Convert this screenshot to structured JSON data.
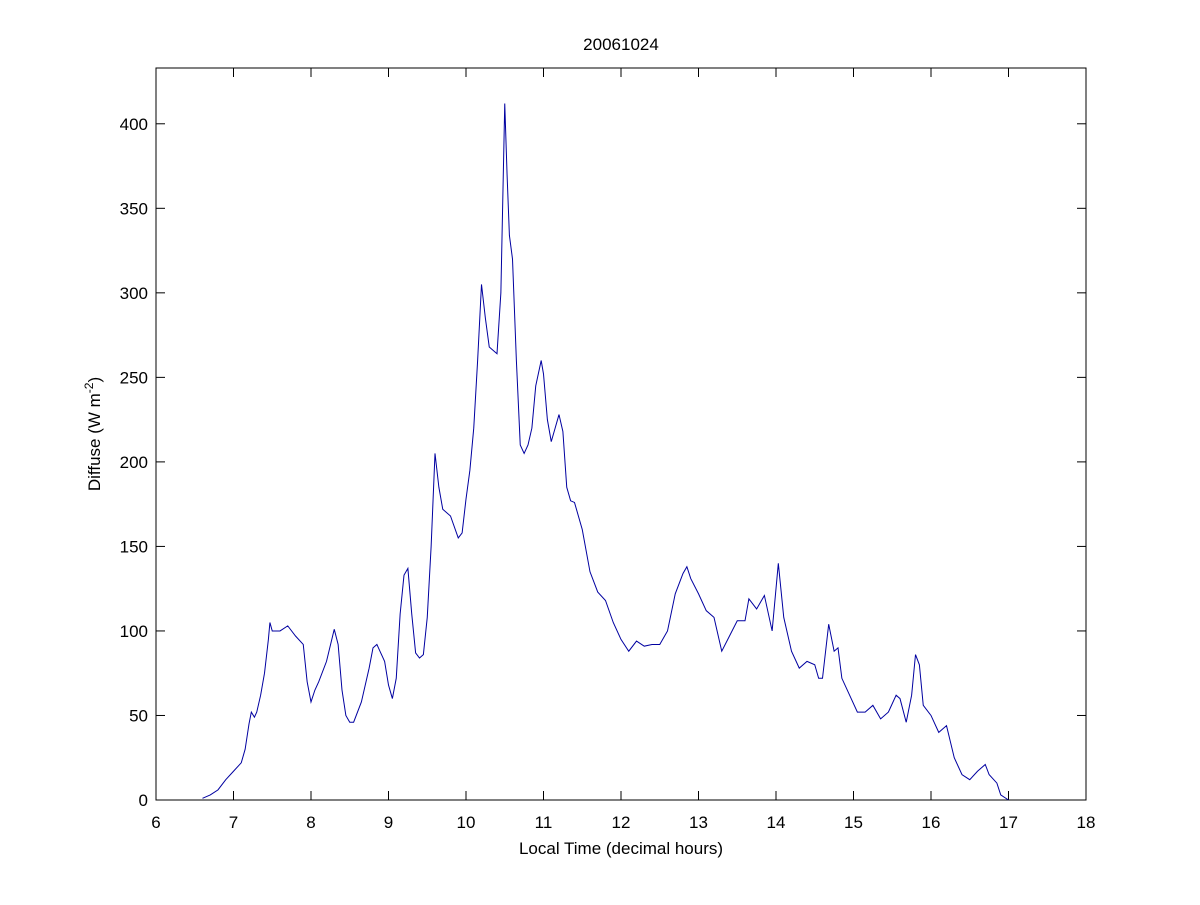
{
  "chart_data": {
    "type": "line",
    "title": "20061024",
    "xlabel": "Local Time (decimal hours)",
    "ylabel": [
      "Diffuse (W m",
      "-2",
      ")"
    ],
    "xlim": [
      6,
      18
    ],
    "xticks": [
      6,
      7,
      8,
      9,
      10,
      11,
      12,
      13,
      14,
      15,
      16,
      17,
      18
    ],
    "ylim": [
      0,
      433
    ],
    "yticks": [
      0,
      50,
      100,
      150,
      200,
      250,
      300,
      350,
      400
    ],
    "x": [
      6.6,
      6.7,
      6.8,
      6.9,
      7.0,
      7.1,
      7.15,
      7.2,
      7.23,
      7.27,
      7.3,
      7.35,
      7.4,
      7.45,
      7.47,
      7.5,
      7.6,
      7.7,
      7.8,
      7.9,
      7.95,
      8.0,
      8.05,
      8.1,
      8.2,
      8.3,
      8.35,
      8.4,
      8.45,
      8.5,
      8.55,
      8.65,
      8.75,
      8.8,
      8.85,
      8.95,
      9.0,
      9.05,
      9.1,
      9.15,
      9.2,
      9.25,
      9.3,
      9.35,
      9.4,
      9.45,
      9.5,
      9.55,
      9.6,
      9.65,
      9.7,
      9.8,
      9.9,
      9.95,
      10.0,
      10.05,
      10.1,
      10.15,
      10.2,
      10.25,
      10.3,
      10.4,
      10.45,
      10.5,
      10.53,
      10.56,
      10.6,
      10.65,
      10.7,
      10.75,
      10.8,
      10.85,
      10.9,
      10.97,
      11.0,
      11.05,
      11.1,
      11.15,
      11.2,
      11.25,
      11.3,
      11.35,
      11.4,
      11.5,
      11.6,
      11.7,
      11.8,
      11.9,
      12.0,
      12.1,
      12.2,
      12.3,
      12.4,
      12.5,
      12.6,
      12.7,
      12.8,
      12.85,
      12.9,
      13.0,
      13.1,
      13.2,
      13.3,
      13.4,
      13.5,
      13.6,
      13.65,
      13.75,
      13.85,
      13.95,
      14.0,
      14.03,
      14.1,
      14.2,
      14.3,
      14.4,
      14.5,
      14.55,
      14.6,
      14.68,
      14.75,
      14.8,
      14.85,
      14.95,
      15.05,
      15.15,
      15.25,
      15.35,
      15.45,
      15.55,
      15.6,
      15.68,
      15.75,
      15.8,
      15.85,
      15.9,
      16.0,
      16.1,
      16.2,
      16.3,
      16.4,
      16.5,
      16.6,
      16.7,
      16.75,
      16.85,
      16.9,
      17.0
    ],
    "series": [
      {
        "color": "#0000a0",
        "values": [
          1,
          3,
          6,
          12,
          17,
          22,
          30,
          45,
          52,
          49,
          52,
          62,
          75,
          95,
          105,
          100,
          100,
          103,
          97,
          92,
          70,
          58,
          65,
          70,
          82,
          101,
          92,
          65,
          50,
          46,
          46,
          58,
          78,
          90,
          92,
          82,
          68,
          60,
          72,
          110,
          133,
          137,
          110,
          87,
          84,
          86,
          108,
          150,
          205,
          185,
          172,
          168,
          155,
          158,
          178,
          195,
          220,
          260,
          305,
          285,
          268,
          264,
          300,
          412,
          370,
          334,
          320,
          260,
          210,
          205,
          210,
          220,
          245,
          260,
          252,
          225,
          212,
          220,
          228,
          218,
          185,
          177,
          176,
          160,
          135,
          123,
          118,
          105,
          95,
          88,
          94,
          91,
          92,
          92,
          100,
          122,
          134,
          138,
          131,
          122,
          112,
          108,
          88,
          97,
          106,
          106,
          119,
          113,
          121,
          100,
          125,
          140,
          108,
          88,
          78,
          82,
          80,
          72,
          72,
          104,
          88,
          90,
          72,
          62,
          52,
          52,
          56,
          48,
          52,
          62,
          60,
          46,
          62,
          86,
          80,
          56,
          50,
          40,
          44,
          25,
          15,
          12,
          17,
          21,
          15,
          10,
          3,
          0
        ]
      }
    ]
  }
}
